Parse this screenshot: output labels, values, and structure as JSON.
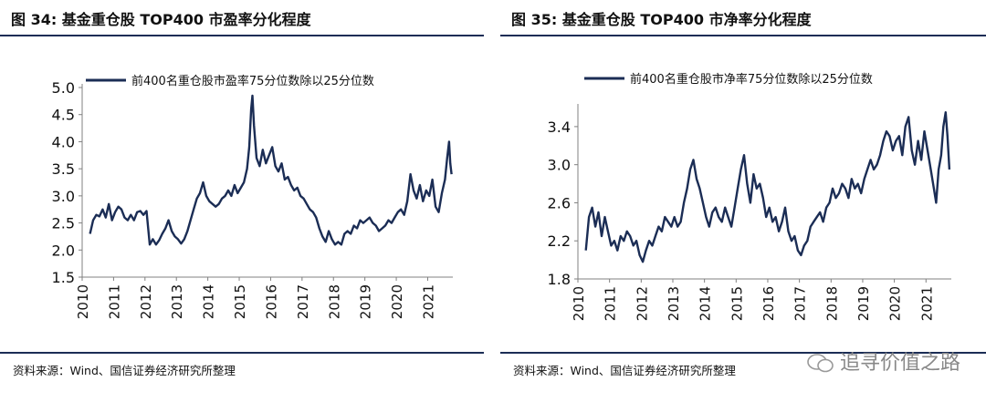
{
  "watermark": "追寻价值之路",
  "colors": {
    "line": "#1b2d55",
    "rule": "#1b2d55",
    "axis": "#808080"
  },
  "chart_data": [
    {
      "type": "line",
      "title": "图 34:  基金重仓股 TOP400 市盈率分化程度",
      "source": "资料来源：Wind、国信证券经济研究所整理",
      "series": [
        {
          "name": "前400名重仓股市盈率75分位数除以25分位数",
          "points": [
            [
              2010.25,
              2.3
            ],
            [
              2010.35,
              2.55
            ],
            [
              2010.45,
              2.65
            ],
            [
              2010.55,
              2.62
            ],
            [
              2010.65,
              2.75
            ],
            [
              2010.75,
              2.6
            ],
            [
              2010.85,
              2.85
            ],
            [
              2010.95,
              2.55
            ],
            [
              2011.05,
              2.7
            ],
            [
              2011.15,
              2.8
            ],
            [
              2011.25,
              2.75
            ],
            [
              2011.35,
              2.6
            ],
            [
              2011.45,
              2.55
            ],
            [
              2011.55,
              2.65
            ],
            [
              2011.65,
              2.55
            ],
            [
              2011.75,
              2.7
            ],
            [
              2011.85,
              2.72
            ],
            [
              2011.95,
              2.65
            ],
            [
              2012.05,
              2.72
            ],
            [
              2012.15,
              2.1
            ],
            [
              2012.25,
              2.2
            ],
            [
              2012.35,
              2.1
            ],
            [
              2012.45,
              2.18
            ],
            [
              2012.55,
              2.3
            ],
            [
              2012.65,
              2.4
            ],
            [
              2012.75,
              2.55
            ],
            [
              2012.85,
              2.35
            ],
            [
              2012.95,
              2.25
            ],
            [
              2013.05,
              2.2
            ],
            [
              2013.15,
              2.12
            ],
            [
              2013.25,
              2.2
            ],
            [
              2013.35,
              2.35
            ],
            [
              2013.45,
              2.55
            ],
            [
              2013.55,
              2.75
            ],
            [
              2013.65,
              2.95
            ],
            [
              2013.75,
              3.05
            ],
            [
              2013.85,
              3.25
            ],
            [
              2013.95,
              3.0
            ],
            [
              2014.05,
              2.9
            ],
            [
              2014.15,
              2.85
            ],
            [
              2014.25,
              2.8
            ],
            [
              2014.35,
              2.85
            ],
            [
              2014.45,
              2.95
            ],
            [
              2014.55,
              3.0
            ],
            [
              2014.65,
              3.1
            ],
            [
              2014.75,
              3.0
            ],
            [
              2014.85,
              3.2
            ],
            [
              2014.95,
              3.05
            ],
            [
              2015.05,
              3.15
            ],
            [
              2015.15,
              3.25
            ],
            [
              2015.25,
              3.5
            ],
            [
              2015.32,
              3.9
            ],
            [
              2015.38,
              4.6
            ],
            [
              2015.42,
              4.85
            ],
            [
              2015.47,
              4.3
            ],
            [
              2015.55,
              3.7
            ],
            [
              2015.65,
              3.55
            ],
            [
              2015.75,
              3.85
            ],
            [
              2015.85,
              3.6
            ],
            [
              2015.95,
              3.75
            ],
            [
              2016.05,
              3.9
            ],
            [
              2016.15,
              3.55
            ],
            [
              2016.25,
              3.45
            ],
            [
              2016.35,
              3.6
            ],
            [
              2016.45,
              3.3
            ],
            [
              2016.55,
              3.35
            ],
            [
              2016.65,
              3.2
            ],
            [
              2016.75,
              3.1
            ],
            [
              2016.85,
              3.15
            ],
            [
              2016.95,
              3.0
            ],
            [
              2017.05,
              2.95
            ],
            [
              2017.15,
              2.85
            ],
            [
              2017.25,
              2.75
            ],
            [
              2017.35,
              2.7
            ],
            [
              2017.45,
              2.6
            ],
            [
              2017.55,
              2.4
            ],
            [
              2017.65,
              2.25
            ],
            [
              2017.75,
              2.15
            ],
            [
              2017.85,
              2.35
            ],
            [
              2017.95,
              2.2
            ],
            [
              2018.05,
              2.1
            ],
            [
              2018.15,
              2.15
            ],
            [
              2018.25,
              2.1
            ],
            [
              2018.35,
              2.3
            ],
            [
              2018.45,
              2.35
            ],
            [
              2018.55,
              2.3
            ],
            [
              2018.65,
              2.45
            ],
            [
              2018.75,
              2.4
            ],
            [
              2018.85,
              2.55
            ],
            [
              2018.95,
              2.5
            ],
            [
              2019.05,
              2.55
            ],
            [
              2019.15,
              2.6
            ],
            [
              2019.25,
              2.5
            ],
            [
              2019.35,
              2.45
            ],
            [
              2019.45,
              2.35
            ],
            [
              2019.55,
              2.4
            ],
            [
              2019.65,
              2.45
            ],
            [
              2019.75,
              2.55
            ],
            [
              2019.85,
              2.5
            ],
            [
              2019.95,
              2.6
            ],
            [
              2020.05,
              2.7
            ],
            [
              2020.15,
              2.75
            ],
            [
              2020.25,
              2.65
            ],
            [
              2020.35,
              2.9
            ],
            [
              2020.45,
              3.4
            ],
            [
              2020.55,
              3.1
            ],
            [
              2020.65,
              2.95
            ],
            [
              2020.75,
              3.2
            ],
            [
              2020.85,
              2.9
            ],
            [
              2020.95,
              3.1
            ],
            [
              2021.05,
              3.0
            ],
            [
              2021.15,
              3.3
            ],
            [
              2021.25,
              2.8
            ],
            [
              2021.35,
              2.7
            ],
            [
              2021.45,
              3.05
            ],
            [
              2021.55,
              3.3
            ],
            [
              2021.62,
              3.7
            ],
            [
              2021.68,
              4.0
            ],
            [
              2021.72,
              3.6
            ],
            [
              2021.76,
              3.4
            ]
          ]
        }
      ],
      "yticks": [
        "1.5",
        "2.0",
        "2.5",
        "3.0",
        "3.5",
        "4.0",
        "4.5",
        "5.0"
      ],
      "xticks": [
        "2010",
        "2011",
        "2012",
        "2013",
        "2014",
        "2015",
        "2016",
        "2017",
        "2018",
        "2019",
        "2020",
        "2021"
      ],
      "ylim": [
        1.5,
        5.0
      ],
      "xlim": [
        2010,
        2021.8
      ],
      "legend_position": "top-left",
      "grid": false
    },
    {
      "type": "line",
      "title": "图 35:  基金重仓股 TOP400 市净率分化程度",
      "source": "资料来源：Wind、国信证券经济研究所整理",
      "series": [
        {
          "name": "前400名重仓股市净率75分位数除以25分位数",
          "points": [
            [
              2010.25,
              2.1
            ],
            [
              2010.35,
              2.45
            ],
            [
              2010.45,
              2.55
            ],
            [
              2010.55,
              2.35
            ],
            [
              2010.65,
              2.5
            ],
            [
              2010.75,
              2.25
            ],
            [
              2010.85,
              2.45
            ],
            [
              2010.95,
              2.3
            ],
            [
              2011.05,
              2.15
            ],
            [
              2011.15,
              2.2
            ],
            [
              2011.25,
              2.1
            ],
            [
              2011.35,
              2.25
            ],
            [
              2011.45,
              2.2
            ],
            [
              2011.55,
              2.3
            ],
            [
              2011.65,
              2.25
            ],
            [
              2011.75,
              2.15
            ],
            [
              2011.85,
              2.2
            ],
            [
              2011.95,
              2.05
            ],
            [
              2012.05,
              1.98
            ],
            [
              2012.15,
              2.1
            ],
            [
              2012.25,
              2.2
            ],
            [
              2012.35,
              2.15
            ],
            [
              2012.45,
              2.25
            ],
            [
              2012.55,
              2.35
            ],
            [
              2012.65,
              2.3
            ],
            [
              2012.75,
              2.45
            ],
            [
              2012.85,
              2.4
            ],
            [
              2012.95,
              2.35
            ],
            [
              2013.05,
              2.45
            ],
            [
              2013.15,
              2.35
            ],
            [
              2013.25,
              2.4
            ],
            [
              2013.35,
              2.6
            ],
            [
              2013.45,
              2.75
            ],
            [
              2013.55,
              2.95
            ],
            [
              2013.65,
              3.05
            ],
            [
              2013.75,
              2.85
            ],
            [
              2013.85,
              2.75
            ],
            [
              2013.95,
              2.6
            ],
            [
              2014.05,
              2.45
            ],
            [
              2014.15,
              2.35
            ],
            [
              2014.25,
              2.5
            ],
            [
              2014.35,
              2.55
            ],
            [
              2014.45,
              2.45
            ],
            [
              2014.55,
              2.4
            ],
            [
              2014.65,
              2.55
            ],
            [
              2014.75,
              2.45
            ],
            [
              2014.85,
              2.35
            ],
            [
              2014.95,
              2.55
            ],
            [
              2015.05,
              2.75
            ],
            [
              2015.15,
              2.95
            ],
            [
              2015.25,
              3.1
            ],
            [
              2015.35,
              2.8
            ],
            [
              2015.45,
              2.6
            ],
            [
              2015.55,
              2.9
            ],
            [
              2015.65,
              2.75
            ],
            [
              2015.75,
              2.8
            ],
            [
              2015.85,
              2.65
            ],
            [
              2015.95,
              2.45
            ],
            [
              2016.05,
              2.55
            ],
            [
              2016.15,
              2.4
            ],
            [
              2016.25,
              2.45
            ],
            [
              2016.35,
              2.3
            ],
            [
              2016.45,
              2.4
            ],
            [
              2016.55,
              2.55
            ],
            [
              2016.65,
              2.3
            ],
            [
              2016.75,
              2.2
            ],
            [
              2016.85,
              2.25
            ],
            [
              2016.95,
              2.1
            ],
            [
              2017.05,
              2.05
            ],
            [
              2017.15,
              2.15
            ],
            [
              2017.25,
              2.2
            ],
            [
              2017.35,
              2.35
            ],
            [
              2017.45,
              2.4
            ],
            [
              2017.55,
              2.45
            ],
            [
              2017.65,
              2.5
            ],
            [
              2017.75,
              2.4
            ],
            [
              2017.85,
              2.55
            ],
            [
              2017.95,
              2.6
            ],
            [
              2018.05,
              2.75
            ],
            [
              2018.15,
              2.65
            ],
            [
              2018.25,
              2.7
            ],
            [
              2018.35,
              2.8
            ],
            [
              2018.45,
              2.75
            ],
            [
              2018.55,
              2.65
            ],
            [
              2018.65,
              2.85
            ],
            [
              2018.75,
              2.75
            ],
            [
              2018.85,
              2.8
            ],
            [
              2018.95,
              2.7
            ],
            [
              2019.05,
              2.85
            ],
            [
              2019.15,
              2.95
            ],
            [
              2019.25,
              3.05
            ],
            [
              2019.35,
              2.95
            ],
            [
              2019.45,
              3.0
            ],
            [
              2019.55,
              3.1
            ],
            [
              2019.65,
              3.25
            ],
            [
              2019.75,
              3.35
            ],
            [
              2019.85,
              3.3
            ],
            [
              2019.95,
              3.15
            ],
            [
              2020.05,
              3.25
            ],
            [
              2020.15,
              3.3
            ],
            [
              2020.25,
              3.1
            ],
            [
              2020.35,
              3.4
            ],
            [
              2020.45,
              3.5
            ],
            [
              2020.55,
              3.15
            ],
            [
              2020.65,
              3.0
            ],
            [
              2020.75,
              3.25
            ],
            [
              2020.85,
              3.05
            ],
            [
              2020.95,
              3.35
            ],
            [
              2021.05,
              3.15
            ],
            [
              2021.15,
              2.95
            ],
            [
              2021.25,
              2.75
            ],
            [
              2021.32,
              2.6
            ],
            [
              2021.4,
              2.95
            ],
            [
              2021.48,
              3.1
            ],
            [
              2021.55,
              3.4
            ],
            [
              2021.62,
              3.55
            ],
            [
              2021.68,
              3.3
            ],
            [
              2021.74,
              2.95
            ]
          ]
        }
      ],
      "yticks": [
        "1.8",
        "2.2",
        "2.6",
        "3.0",
        "3.4"
      ],
      "xticks": [
        "2010",
        "2011",
        "2012",
        "2013",
        "2014",
        "2015",
        "2016",
        "2017",
        "2018",
        "2019",
        "2020",
        "2021"
      ],
      "ylim": [
        1.8,
        3.6
      ],
      "xlim": [
        2010,
        2021.8
      ],
      "legend_position": "top-left",
      "grid": false
    }
  ]
}
